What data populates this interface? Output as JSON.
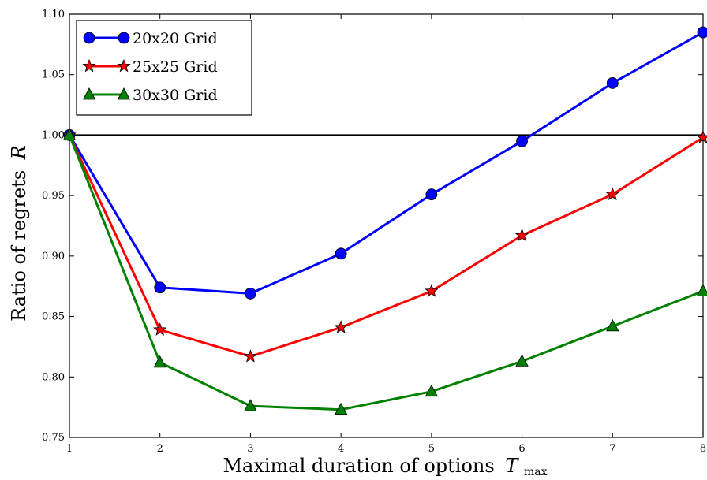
{
  "chart_data": {
    "type": "line",
    "x": [
      1,
      2,
      3,
      4,
      5,
      6,
      7,
      8
    ],
    "series": [
      {
        "name": "20x20 Grid",
        "color": "#0000ff",
        "marker": "circle",
        "values": [
          1.0,
          0.874,
          0.869,
          0.902,
          0.951,
          0.995,
          1.043,
          1.085
        ]
      },
      {
        "name": "25x25 Grid",
        "color": "#ff0000",
        "marker": "star",
        "values": [
          1.0,
          0.839,
          0.817,
          0.841,
          0.871,
          0.917,
          0.951,
          0.998
        ]
      },
      {
        "name": "30x30 Grid",
        "color": "#008000",
        "marker": "triangle",
        "values": [
          1.0,
          0.812,
          0.776,
          0.773,
          0.788,
          0.813,
          0.842,
          0.871
        ]
      }
    ],
    "reference_line": 1.0,
    "xlim": [
      1,
      8
    ],
    "ylim": [
      0.75,
      1.1
    ],
    "xticks": [
      1,
      2,
      3,
      4,
      5,
      6,
      7,
      8
    ],
    "yticks": [
      0.75,
      0.8,
      0.85,
      0.9,
      0.95,
      1.0,
      1.05,
      1.1
    ],
    "ytick_labels": [
      "0.75",
      "0.80",
      "0.85",
      "0.90",
      "0.95",
      "1.00",
      "1.05",
      "1.10"
    ],
    "xlabel": "Maximal duration of options",
    "xlabel_symbol": "T",
    "xlabel_subscript": "max",
    "ylabel": "Ratio of regrets",
    "ylabel_symbol": "R",
    "legend_position": "upper-left",
    "grid": false
  }
}
